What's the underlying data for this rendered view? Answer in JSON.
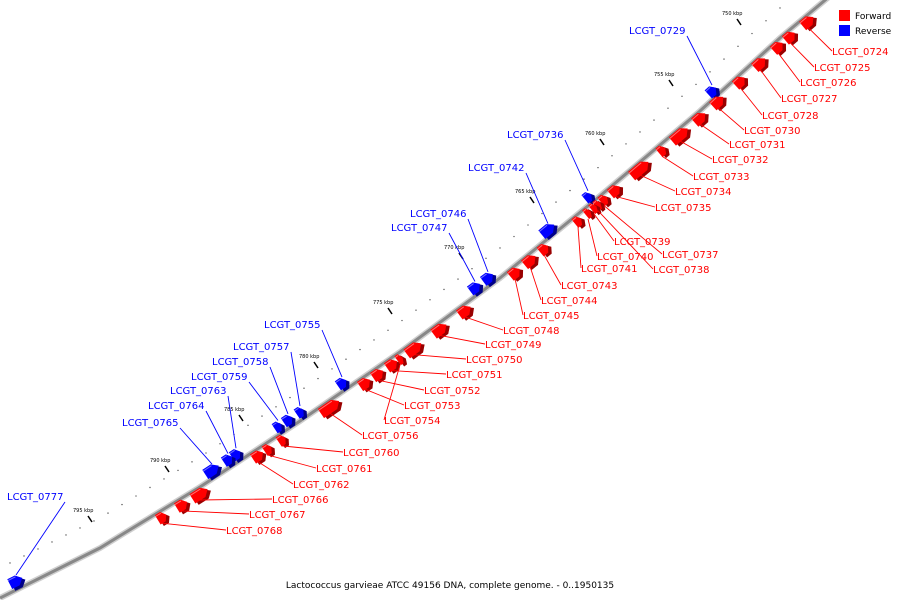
{
  "caption": "Lactococcus garvieae ATCC 49156 DNA, complete genome. - 0..1950135",
  "legend": [
    {
      "label": "Forward",
      "color": "#ff0000"
    },
    {
      "label": "Reverse",
      "color": "#0000ff"
    }
  ],
  "colors": {
    "forward": "#ff0000",
    "reverse": "#0000ff",
    "backbone": "#888888",
    "connector_forward": "#ff0000",
    "connector_reverse": "#0000ff"
  },
  "ticks": [
    "750 kbp",
    "755 kbp",
    "760 kbp",
    "765 kbp",
    "770 kbp",
    "775 kbp",
    "780 kbp",
    "785 kbp",
    "790 kbp",
    "795 kbp"
  ],
  "genes": [
    {
      "id": "LCGT_0724",
      "strand": "forward"
    },
    {
      "id": "LCGT_0725",
      "strand": "forward"
    },
    {
      "id": "LCGT_0726",
      "strand": "forward"
    },
    {
      "id": "LCGT_0727",
      "strand": "forward"
    },
    {
      "id": "LCGT_0728",
      "strand": "forward"
    },
    {
      "id": "LCGT_0729",
      "strand": "reverse"
    },
    {
      "id": "LCGT_0730",
      "strand": "forward"
    },
    {
      "id": "LCGT_0731",
      "strand": "forward"
    },
    {
      "id": "LCGT_0732",
      "strand": "forward"
    },
    {
      "id": "LCGT_0733",
      "strand": "forward"
    },
    {
      "id": "LCGT_0734",
      "strand": "forward"
    },
    {
      "id": "LCGT_0735",
      "strand": "forward"
    },
    {
      "id": "LCGT_0736",
      "strand": "reverse"
    },
    {
      "id": "LCGT_0737",
      "strand": "forward"
    },
    {
      "id": "LCGT_0738",
      "strand": "forward"
    },
    {
      "id": "LCGT_0739",
      "strand": "forward"
    },
    {
      "id": "LCGT_0740",
      "strand": "forward"
    },
    {
      "id": "LCGT_0741",
      "strand": "forward"
    },
    {
      "id": "LCGT_0742",
      "strand": "reverse"
    },
    {
      "id": "LCGT_0743",
      "strand": "forward"
    },
    {
      "id": "LCGT_0744",
      "strand": "forward"
    },
    {
      "id": "LCGT_0745",
      "strand": "forward"
    },
    {
      "id": "LCGT_0746",
      "strand": "reverse"
    },
    {
      "id": "LCGT_0747",
      "strand": "reverse"
    },
    {
      "id": "LCGT_0748",
      "strand": "forward"
    },
    {
      "id": "LCGT_0749",
      "strand": "forward"
    },
    {
      "id": "LCGT_0750",
      "strand": "forward"
    },
    {
      "id": "LCGT_0751",
      "strand": "forward"
    },
    {
      "id": "LCGT_0752",
      "strand": "forward"
    },
    {
      "id": "LCGT_0753",
      "strand": "forward"
    },
    {
      "id": "LCGT_0754",
      "strand": "forward"
    },
    {
      "id": "LCGT_0755",
      "strand": "reverse"
    },
    {
      "id": "LCGT_0756",
      "strand": "forward"
    },
    {
      "id": "LCGT_0757",
      "strand": "reverse"
    },
    {
      "id": "LCGT_0758",
      "strand": "reverse"
    },
    {
      "id": "LCGT_0759",
      "strand": "reverse"
    },
    {
      "id": "LCGT_0760",
      "strand": "forward"
    },
    {
      "id": "LCGT_0761",
      "strand": "forward"
    },
    {
      "id": "LCGT_0762",
      "strand": "forward"
    },
    {
      "id": "LCGT_0763",
      "strand": "reverse"
    },
    {
      "id": "LCGT_0764",
      "strand": "reverse"
    },
    {
      "id": "LCGT_0765",
      "strand": "reverse"
    },
    {
      "id": "LCGT_0766",
      "strand": "forward"
    },
    {
      "id": "LCGT_0767",
      "strand": "forward"
    },
    {
      "id": "LCGT_0768",
      "strand": "forward"
    },
    {
      "id": "LCGT_0777",
      "strand": "reverse"
    }
  ]
}
